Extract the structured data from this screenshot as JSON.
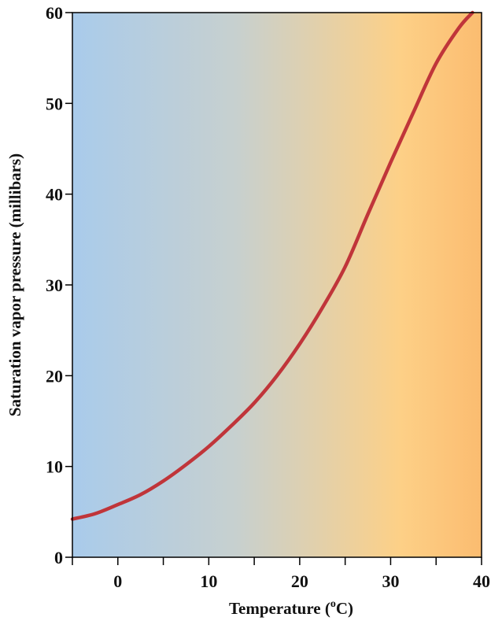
{
  "chart_data": {
    "type": "line",
    "title": "",
    "xlabel": "Temperature (",
    "xlabel_sup": "o",
    "xlabel_end": "C)",
    "ylabel": "Saturation vapor pressure (millibars)",
    "xlim": [
      -5,
      40
    ],
    "ylim": [
      0,
      60
    ],
    "x_ticks": [
      -5,
      0,
      5,
      10,
      15,
      20,
      25,
      30,
      35,
      40
    ],
    "x_tick_labels": [
      {
        "x": 0,
        "label": "0"
      },
      {
        "x": 10,
        "label": "10"
      },
      {
        "x": 20,
        "label": "20"
      },
      {
        "x": 30,
        "label": "30"
      },
      {
        "x": 40,
        "label": "40"
      }
    ],
    "y_ticks": [
      {
        "y": 0,
        "label": "0"
      },
      {
        "y": 10,
        "label": "10"
      },
      {
        "y": 20,
        "label": "20"
      },
      {
        "y": 30,
        "label": "30"
      },
      {
        "y": 40,
        "label": "40"
      },
      {
        "y": 50,
        "label": "50"
      },
      {
        "y": 60,
        "label": "60"
      }
    ],
    "grid": false,
    "background_gradient": [
      "#a9cbeb",
      "#c7d0cf",
      "#fdd087",
      "#fbbc70"
    ],
    "series": [
      {
        "color": "#c0353a",
        "x": [
          -5,
          -2.5,
          0,
          2.5,
          5,
          7.5,
          10,
          12.5,
          15,
          17.5,
          20,
          22.5,
          25,
          27.5,
          30,
          32.5,
          35,
          37.5,
          39
        ],
        "y": [
          4.2,
          4.8,
          5.8,
          6.9,
          8.4,
          10.2,
          12.2,
          14.5,
          17.0,
          20.0,
          23.5,
          27.5,
          32.0,
          37.8,
          43.5,
          49.0,
          54.4,
          58.3,
          60
        ]
      }
    ]
  }
}
